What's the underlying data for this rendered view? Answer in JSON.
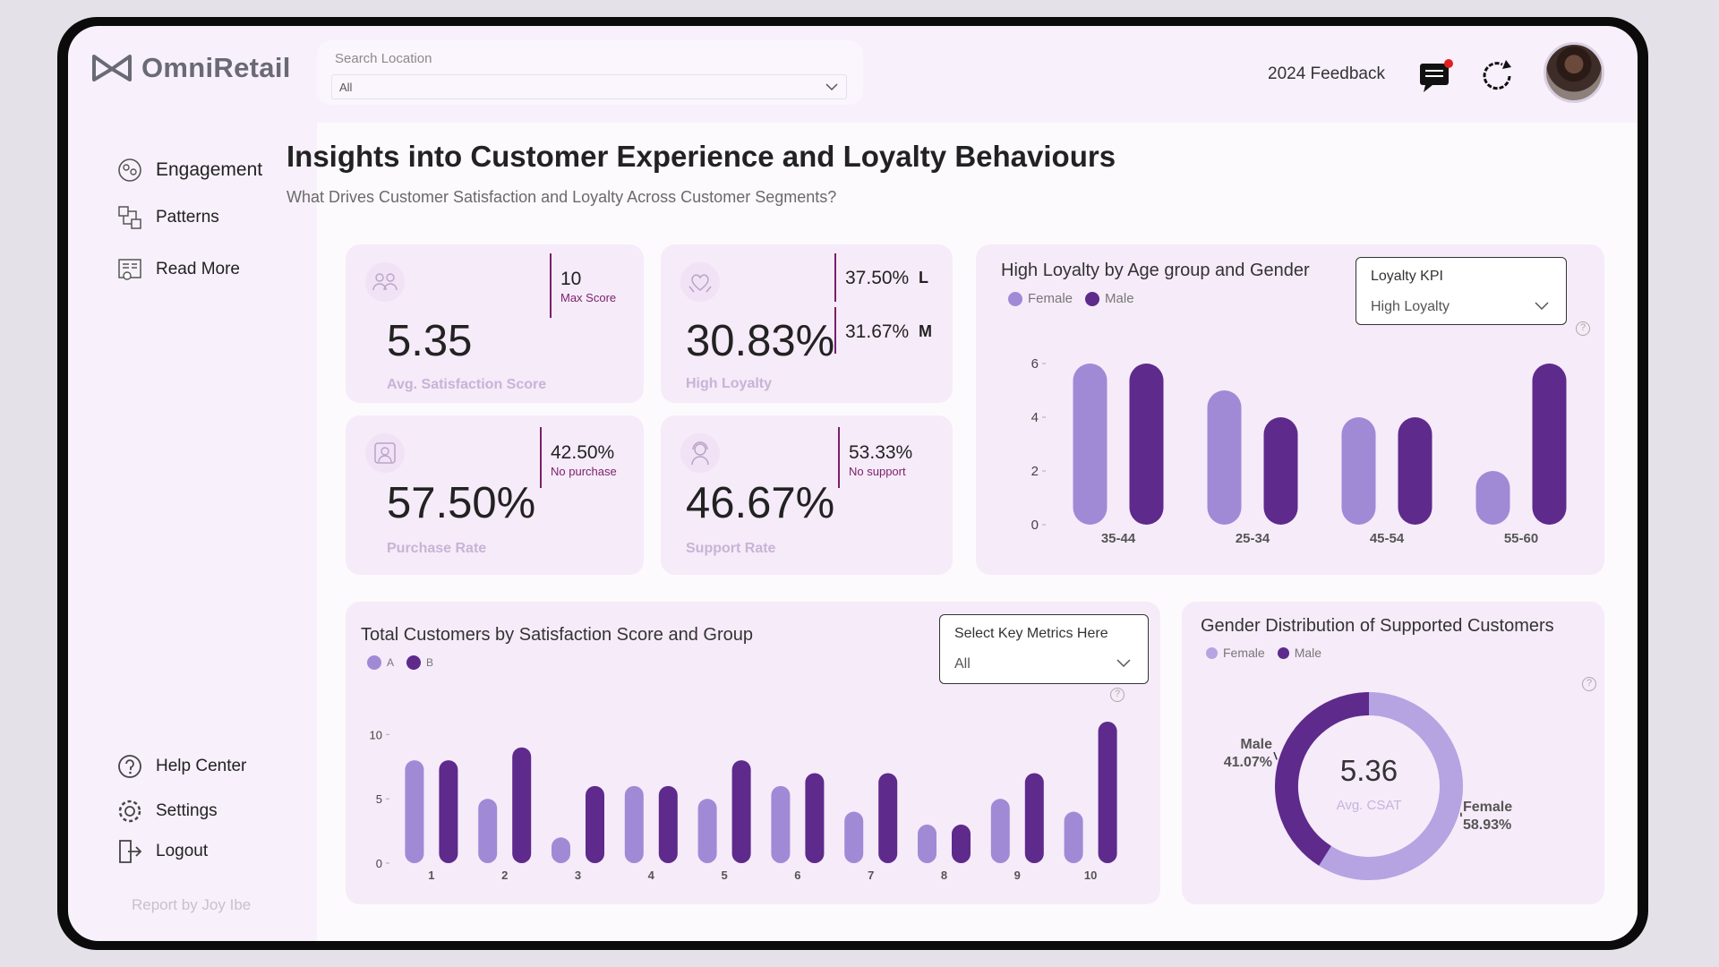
{
  "brand": {
    "name": "OmniRetail"
  },
  "search": {
    "label": "Search Location",
    "value": "All"
  },
  "header": {
    "feedback": "2024 Feedback"
  },
  "sidebar": {
    "items": [
      {
        "label": "Engagement",
        "icon": "engagement-icon"
      },
      {
        "label": "Patterns",
        "icon": "patterns-icon"
      },
      {
        "label": "Read More",
        "icon": "read-more-icon"
      }
    ],
    "bottom_items": [
      {
        "label": "Help Center",
        "icon": "help-icon"
      },
      {
        "label": "Settings",
        "icon": "gear-icon"
      },
      {
        "label": "Logout",
        "icon": "logout-icon"
      }
    ],
    "credit": "Report by Joy Ibe"
  },
  "page": {
    "title": "Insights into Customer Experience and Loyalty Behaviours",
    "subtitle": "What Drives Customer Satisfaction and Loyalty Across Customer Segments?"
  },
  "kpis": {
    "satisfaction": {
      "value": "5.35",
      "label": "Avg. Satisfaction Score",
      "side_value": "10",
      "side_label": "Max Score"
    },
    "loyalty": {
      "value": "30.83%",
      "label": "High Loyalty",
      "side1_value": "37.50%",
      "side1_tag": "L",
      "side2_value": "31.67%",
      "side2_tag": "M"
    },
    "purchase": {
      "value": "57.50%",
      "label": "Purchase Rate",
      "side_value": "42.50%",
      "side_label": "No purchase"
    },
    "support": {
      "value": "46.67%",
      "label": "Support Rate",
      "side_value": "53.33%",
      "side_label": "No support"
    }
  },
  "loyalty_chart": {
    "title": "High Loyalty by Age group and Gender",
    "legend": [
      "Female",
      "Male"
    ],
    "slicer": {
      "title": "Loyalty KPI",
      "value": "High Loyalty"
    }
  },
  "customers_chart": {
    "title": "Total Customers by Satisfaction Score and Group",
    "legend": [
      "A",
      "B"
    ],
    "slicer": {
      "title": "Select Key Metrics Here",
      "value": "All"
    }
  },
  "gender_chart": {
    "title": "Gender Distribution of Supported Customers",
    "legend": [
      "Female",
      "Male"
    ],
    "center_value": "5.36",
    "center_label": "Avg. CSAT",
    "male_label": "Male",
    "male_pct": "41.07%",
    "female_label": "Female",
    "female_pct": "58.93%"
  },
  "colors": {
    "light": "#a08ad6",
    "dark": "#5e2a8c",
    "accent": "#7a1f6a"
  },
  "chart_data": [
    {
      "type": "bar",
      "title": "High Loyalty by Age group and Gender",
      "categories": [
        "35-44",
        "25-34",
        "45-54",
        "55-60"
      ],
      "series": [
        {
          "name": "Female",
          "values": [
            6,
            5,
            4,
            2
          ]
        },
        {
          "name": "Male",
          "values": [
            6,
            4,
            4,
            6
          ]
        }
      ],
      "ylim": [
        0,
        6
      ],
      "yticks": [
        0,
        2,
        4,
        6
      ]
    },
    {
      "type": "bar",
      "title": "Total Customers by Satisfaction Score and Group",
      "categories": [
        "1",
        "2",
        "3",
        "4",
        "5",
        "6",
        "7",
        "8",
        "9",
        "10"
      ],
      "series": [
        {
          "name": "A",
          "values": [
            8,
            5,
            2,
            6,
            5,
            6,
            4,
            3,
            5,
            4
          ]
        },
        {
          "name": "B",
          "values": [
            8,
            9,
            6,
            6,
            8,
            7,
            7,
            3,
            7,
            11
          ]
        }
      ],
      "ylim": [
        0,
        11
      ],
      "yticks": [
        0,
        5,
        10
      ]
    },
    {
      "type": "pie",
      "title": "Gender Distribution of Supported Customers",
      "labels": [
        "Female",
        "Male"
      ],
      "values": [
        58.93,
        41.07
      ]
    }
  ]
}
